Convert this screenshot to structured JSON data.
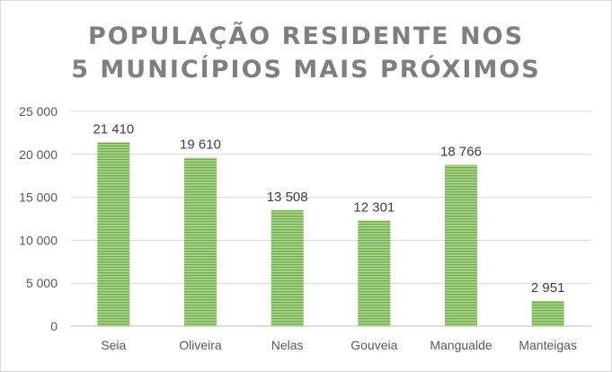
{
  "chart_data": {
    "type": "bar",
    "title_lines": [
      "POPULAÇÃO RESIDENTE NOS",
      "5 MUNICÍPIOS MAIS PRÓXIMOS"
    ],
    "categories": [
      "Seia",
      "Oliveira",
      "Nelas",
      "Gouveia",
      "Mangualde",
      "Manteigas"
    ],
    "values": [
      21410,
      19610,
      13508,
      12301,
      18766,
      2951
    ],
    "value_labels": [
      "21 410",
      "19 610",
      "13 508",
      "12 301",
      "18 766",
      "2 951"
    ],
    "yticks": [
      0,
      5000,
      10000,
      15000,
      20000,
      25000
    ],
    "ytick_labels": [
      "0",
      "5 000",
      "10 000",
      "15 000",
      "20 000",
      "25 000"
    ],
    "ylim": [
      0,
      25000
    ],
    "grid": true,
    "xlabel": "",
    "ylabel": "",
    "bar_color_light": "#c5e0b4",
    "bar_color_dark": "#70ad47"
  }
}
